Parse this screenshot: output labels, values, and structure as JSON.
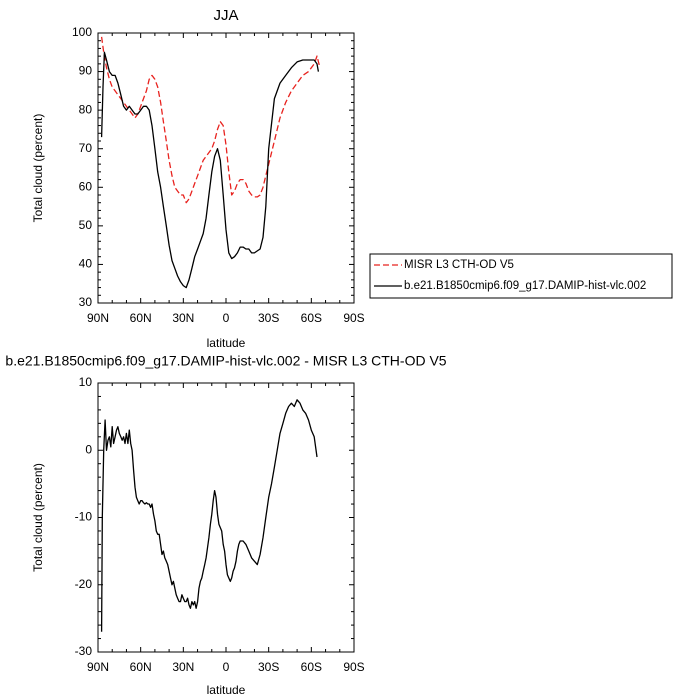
{
  "chart_data": [
    {
      "type": "line",
      "title": "JJA",
      "xlabel": "latitude",
      "ylabel": "Total cloud (percent)",
      "xlim": [
        90,
        -90
      ],
      "ylim": [
        30,
        100
      ],
      "x_ticks": [
        90,
        60,
        30,
        0,
        -30,
        -60,
        -90
      ],
      "x_tick_labels": [
        "90N",
        "60N",
        "30N",
        "0",
        "30S",
        "60S",
        "90S"
      ],
      "y_ticks": [
        30,
        40,
        50,
        60,
        70,
        80,
        90,
        100
      ],
      "y_tick_labels": [
        "30",
        "40",
        "50",
        "60",
        "70",
        "80",
        "90",
        "100"
      ],
      "grid": false,
      "legend": "right",
      "series": [
        {
          "name": "MISR L3 CTH-OD V5",
          "color": "#e8231f",
          "dash": true,
          "x": [
            87.5,
            86,
            84,
            82,
            80,
            78,
            76,
            74,
            72,
            70,
            68,
            66,
            64,
            62,
            60,
            58,
            56,
            54,
            52,
            50,
            48,
            46,
            44,
            42,
            40,
            38,
            36,
            34,
            32,
            30,
            28,
            26,
            24,
            22,
            20,
            18,
            16,
            14,
            12,
            10,
            8,
            6,
            4,
            2,
            0,
            -2,
            -4,
            -6,
            -8,
            -10,
            -12,
            -14,
            -16,
            -18,
            -20,
            -22,
            -24,
            -26,
            -28,
            -30,
            -34,
            -38,
            -42,
            -46,
            -50,
            -54,
            -58,
            -62,
            -64,
            -66
          ],
          "y": [
            99,
            95,
            91,
            88,
            86,
            85,
            84,
            83,
            82,
            81,
            80,
            79,
            78,
            79,
            81,
            83,
            85,
            88,
            89,
            88,
            86,
            82,
            77,
            72,
            67,
            63,
            60,
            59,
            58,
            58,
            56,
            57,
            59,
            61,
            63,
            65,
            67,
            68,
            69,
            70,
            72,
            75,
            77,
            76,
            71,
            64,
            58,
            59,
            61,
            62,
            62,
            61,
            59,
            58,
            57.5,
            57.5,
            58,
            60,
            63,
            66,
            72,
            78,
            82,
            85,
            87,
            89,
            90,
            92,
            94,
            91
          ]
        },
        {
          "name": "b.e21.B1850cmip6.f09_g17.DAMIP-hist-vlc.002",
          "color": "#000000",
          "dash": false,
          "x": [
            87.5,
            86.5,
            85.5,
            84,
            82,
            80,
            78,
            76,
            74,
            72,
            70,
            68,
            66,
            64,
            62,
            60,
            58,
            56,
            54,
            52,
            50,
            48,
            46,
            44,
            42,
            40,
            38,
            36,
            34,
            32,
            30,
            28,
            26,
            24,
            22,
            20,
            18,
            16,
            14,
            12,
            10,
            8,
            6,
            4,
            2,
            0,
            -2,
            -4,
            -6,
            -8,
            -10,
            -12,
            -14,
            -16,
            -18,
            -20,
            -22,
            -24,
            -26,
            -28,
            -30,
            -34,
            -38,
            -42,
            -46,
            -50,
            -54,
            -58,
            -62,
            -64,
            -65
          ],
          "y": [
            73,
            86,
            95,
            93,
            90,
            89,
            89,
            87,
            84,
            81,
            80,
            81,
            80,
            79,
            79,
            80,
            81,
            81,
            80,
            76,
            70,
            64,
            60,
            55,
            50,
            45,
            41,
            39,
            37,
            35.5,
            34.5,
            34,
            36,
            39,
            42,
            44,
            46,
            48,
            52,
            58,
            64,
            68,
            70,
            67,
            58,
            49,
            43,
            41.5,
            42,
            43,
            44.5,
            44.5,
            44,
            44,
            43,
            43,
            43.5,
            44,
            47,
            55,
            70,
            83,
            87,
            89,
            91,
            92.5,
            93,
            93,
            93,
            92,
            90
          ]
        }
      ]
    },
    {
      "type": "line",
      "title": "b.e21.B1850cmip6.f09_g17.DAMIP-hist-vlc.002 - MISR L3 CTH-OD V5",
      "xlabel": "latitude",
      "ylabel": "Total cloud (percent)",
      "xlim": [
        90,
        -90
      ],
      "ylim": [
        -30,
        10
      ],
      "x_ticks": [
        90,
        60,
        30,
        0,
        -30,
        -60,
        -90
      ],
      "x_tick_labels": [
        "90N",
        "60N",
        "30N",
        "0",
        "30S",
        "60S",
        "90S"
      ],
      "y_ticks": [
        -30,
        -20,
        -10,
        0,
        10
      ],
      "y_tick_labels": [
        "-30",
        "-20",
        "-10",
        "0",
        "10"
      ],
      "grid": false,
      "series": [
        {
          "color": "#000000",
          "dash": false,
          "x": [
            87.5,
            87,
            86,
            85,
            84,
            83,
            82,
            81,
            80,
            79,
            78,
            77,
            76,
            75,
            74,
            73,
            72,
            71,
            70,
            69,
            68,
            67,
            66,
            65,
            64,
            63,
            62,
            61,
            60,
            59,
            58,
            57,
            56,
            55,
            54,
            53,
            52,
            51,
            50,
            49,
            48,
            47,
            46,
            45,
            44,
            43,
            42,
            41,
            40,
            39,
            38,
            37,
            36,
            35,
            34,
            33,
            32,
            31,
            30,
            29,
            28,
            27,
            26,
            25,
            24,
            23,
            22,
            21,
            20,
            19,
            18,
            17,
            16,
            15,
            14,
            13,
            12,
            11,
            10,
            9,
            8,
            7,
            6,
            5,
            4,
            3,
            2,
            1,
            0,
            -1,
            -2,
            -3,
            -4,
            -5,
            -6,
            -7,
            -8,
            -9,
            -10,
            -12,
            -14,
            -16,
            -18,
            -20,
            -22,
            -24,
            -26,
            -28,
            -30,
            -32,
            -34,
            -36,
            -38,
            -40,
            -42,
            -44,
            -46,
            -48,
            -50,
            -52,
            -54,
            -56,
            -58,
            -60,
            -62,
            -64
          ],
          "y": [
            -27,
            -10,
            0,
            4.5,
            0,
            1.5,
            2,
            0.5,
            3.5,
            1,
            2,
            3,
            3.5,
            2.5,
            2,
            1.5,
            2,
            1,
            2.5,
            1,
            3,
            1,
            0,
            -3,
            -5.5,
            -7,
            -7.5,
            -8,
            -7.5,
            -7.5,
            -7.8,
            -8,
            -7.8,
            -8,
            -8,
            -8.5,
            -8,
            -9.5,
            -10.5,
            -12,
            -12.5,
            -12.5,
            -14,
            -15.5,
            -15,
            -16,
            -16.5,
            -17,
            -18,
            -19,
            -20,
            -19.5,
            -20.5,
            -21.5,
            -22,
            -22.5,
            -22.5,
            -21.5,
            -22,
            -22.5,
            -22.5,
            -22,
            -23,
            -23.5,
            -22.5,
            -23,
            -22.5,
            -23.5,
            -22.5,
            -20.5,
            -19.5,
            -19,
            -18,
            -17,
            -16,
            -14.5,
            -13,
            -11,
            -9.5,
            -7.5,
            -6,
            -7,
            -9.5,
            -11,
            -11.5,
            -12,
            -14,
            -15,
            -17,
            -18.5,
            -19,
            -19.5,
            -19,
            -18,
            -17.5,
            -16.5,
            -15,
            -14,
            -13.5,
            -13.5,
            -14,
            -15,
            -16,
            -16.5,
            -17,
            -15.5,
            -13,
            -10,
            -7,
            -5,
            -2.5,
            0,
            2.5,
            4,
            5.5,
            6.5,
            7,
            6.5,
            7.5,
            7,
            6,
            5.5,
            4.5,
            3,
            2,
            -1
          ]
        }
      ]
    }
  ]
}
